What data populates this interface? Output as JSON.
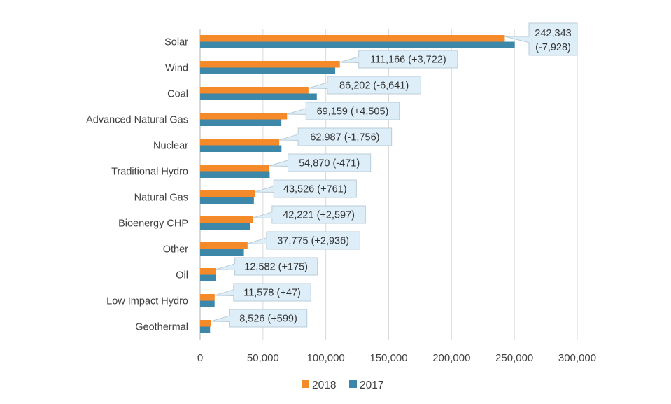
{
  "colors": {
    "series_2018": "#f58a2a",
    "series_2017": "#3d87a8",
    "gridline": "#d9d9d9",
    "axis": "#bfbfbf",
    "callout_fill": "#deeef8",
    "callout_stroke": "#b8ccd8"
  },
  "chart_data": {
    "type": "bar",
    "orientation": "horizontal",
    "categories": [
      "Solar",
      "Wind",
      "Coal",
      "Advanced Natural Gas",
      "Nuclear",
      "Traditional  Hydro",
      "Natural Gas",
      "Bioenergy CHP",
      "Other",
      "Oil",
      "Low Impact  Hydro",
      "Geothermal"
    ],
    "series": [
      {
        "name": "2018",
        "values": [
          242343,
          111166,
          86202,
          69159,
          62987,
          54870,
          43526,
          42221,
          37775,
          12582,
          11578,
          8526
        ]
      },
      {
        "name": "2017",
        "values": [
          250271,
          107444,
          92843,
          64654,
          64743,
          55341,
          42765,
          39624,
          34839,
          12407,
          11531,
          7927
        ]
      }
    ],
    "annotations": [
      "242,343\n(-7,928)",
      "111,166 (+3,722)",
      "86,202 (-6,641)",
      "69,159 (+4,505)",
      "62,987 (-1,756)",
      "54,870 (-471)",
      "43,526 (+761)",
      "42,221 (+2,597)",
      "37,775 (+2,936)",
      "12,582 (+175)",
      "11,578 (+47)",
      "8,526 (+599)"
    ],
    "xlim": [
      0,
      300000
    ],
    "x_ticks": [
      0,
      50000,
      100000,
      150000,
      200000,
      250000,
      300000
    ],
    "x_tick_labels": [
      "0",
      "50,000",
      "100,000",
      "150,000",
      "200,000",
      "250,000",
      "300,000"
    ],
    "grid": true,
    "legend_position": "bottom"
  }
}
